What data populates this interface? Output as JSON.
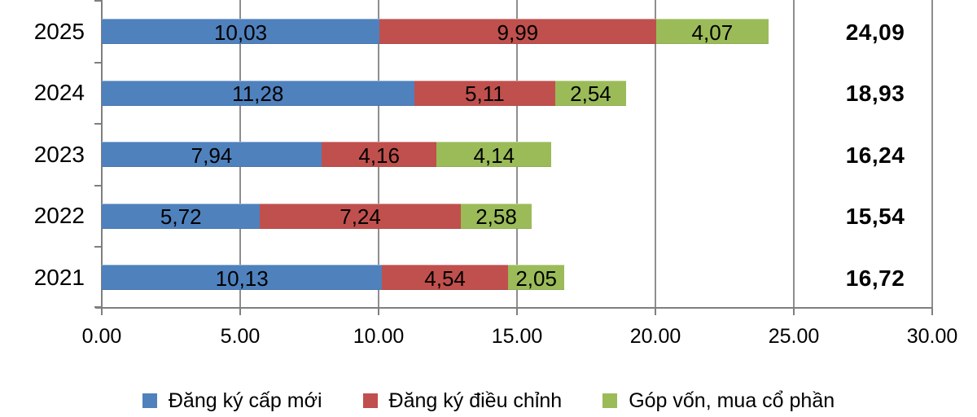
{
  "chart_data": {
    "type": "bar",
    "orientation": "horizontal",
    "stacked": true,
    "title": "",
    "categories": [
      "2025",
      "2024",
      "2023",
      "2022",
      "2021"
    ],
    "series": [
      {
        "name": "Đăng ký cấp mới",
        "color": "#4F81BD",
        "values": [
          10.03,
          11.28,
          7.94,
          5.72,
          10.13
        ],
        "labels": [
          "10,03",
          "11,28",
          "7,94",
          "5,72",
          "10,13"
        ]
      },
      {
        "name": "Đăng ký điều chỉnh",
        "color": "#C0504D",
        "values": [
          9.99,
          5.11,
          4.16,
          7.24,
          4.54
        ],
        "labels": [
          "9,99",
          "5,11",
          "4,16",
          "7,24",
          "4,54"
        ]
      },
      {
        "name": "Góp vốn, mua cổ phần",
        "color": "#9BBB59",
        "values": [
          4.07,
          2.54,
          4.14,
          2.58,
          2.05
        ],
        "labels": [
          "4,07",
          "2,54",
          "4,14",
          "2,58",
          "2,05"
        ]
      }
    ],
    "totals": [
      "24,09",
      "18,93",
      "16,24",
      "15,54",
      "16,72"
    ],
    "x_axis": {
      "ticks": [
        "0.00",
        "5.00",
        "10.00",
        "15.00",
        "20.00",
        "25.00",
        "30.00"
      ],
      "min": 0,
      "max": 30,
      "tick_step": 5
    },
    "grid": true,
    "legend_position": "bottom",
    "colors": {
      "gridline": "#8E8E8E",
      "axis": "#7F7F7F",
      "text": "#000000",
      "background": "#FFFFFF"
    }
  }
}
